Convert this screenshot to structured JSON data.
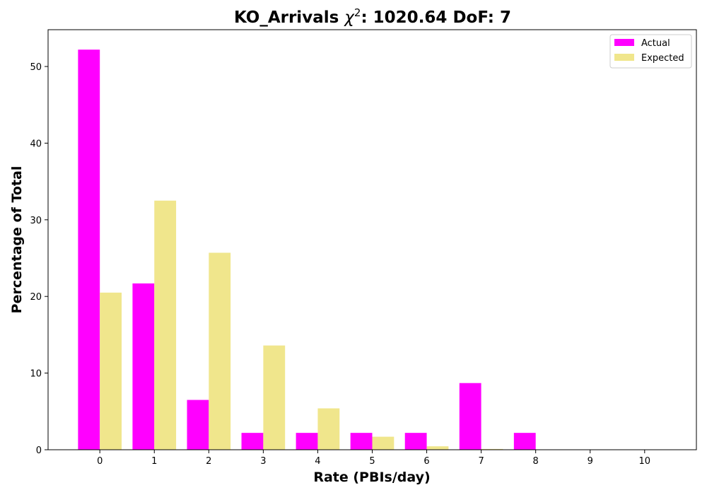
{
  "chart_data": {
    "type": "bar",
    "title": "KO_Arrivals",
    "title_chi_symbol": "χ",
    "title_chi_exponent": "2",
    "title_chi_value": ": 1020.64 DoF: 7",
    "xlabel": "Rate (PBIs/day)",
    "ylabel": "Percentage of Total",
    "categories": [
      "0",
      "1",
      "2",
      "3",
      "4",
      "5",
      "6",
      "7",
      "8",
      "9",
      "10"
    ],
    "x": [
      0,
      1,
      2,
      3,
      4,
      5,
      6,
      7,
      8,
      9,
      10
    ],
    "yticks": [
      0,
      10,
      20,
      30,
      40,
      50
    ],
    "xlim": [
      -0.95,
      10.95
    ],
    "ylim": [
      0,
      54.8
    ],
    "legend_position": "top-right",
    "grid": false,
    "series": [
      {
        "name": "Actual",
        "color": "#ff00ff",
        "values": [
          52.2,
          21.7,
          6.5,
          2.2,
          2.2,
          2.2,
          2.2,
          8.7,
          2.2,
          0,
          0
        ]
      },
      {
        "name": "Expected",
        "color": "#f0e68c",
        "values": [
          20.5,
          32.5,
          25.7,
          13.6,
          5.4,
          1.7,
          0.45,
          0.1,
          0.02,
          0,
          0
        ]
      }
    ]
  }
}
